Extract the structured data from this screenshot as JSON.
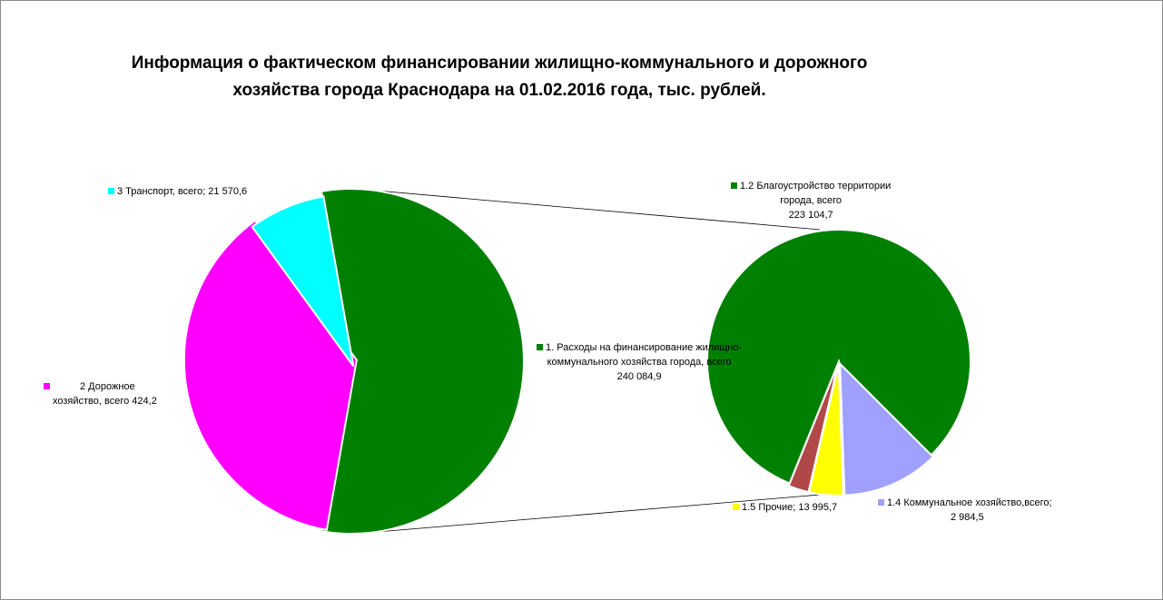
{
  "chart_data": {
    "type": "pie",
    "title_line1": "Информация о фактическом финансировании жилищно-коммунального и дорожного",
    "title_line2": "хозяйства города Краснодара на 01.02.2016 года, тыс. рублей.",
    "main_slices": [
      {
        "label_line1": "1. Расходы на финансирование жилищно-",
        "label_line2": "коммунального  хозяйства города, всего",
        "value_text": "240 084,9",
        "value": 240084.9,
        "color": "#008000"
      },
      {
        "label_line1": "2 Дорожное",
        "label_line2": "хозяйство, всего 424,2",
        "value": 424.2,
        "color": "#ff00ff"
      },
      {
        "label": "3 Транспорт, всего; 21 570,6",
        "value": 21570.6,
        "color": "#00ffff"
      }
    ],
    "sub_slices": [
      {
        "label_line1": "1.2 Благоустройство территории",
        "label_line2": "города, всего",
        "value_text": "223 104,7",
        "value": 223104.7,
        "color": "#008000"
      },
      {
        "label_line1": "1.4 Коммунальное хозяйство,всего;",
        "value_text": "2 984,5",
        "value": 2984.5,
        "color": "#a0a0ff"
      },
      {
        "label": "1.5 Прочие; 13 995,7",
        "value": 13995.7,
        "color": "#ffff00"
      },
      {
        "value": null,
        "color": "#b04848"
      }
    ]
  }
}
